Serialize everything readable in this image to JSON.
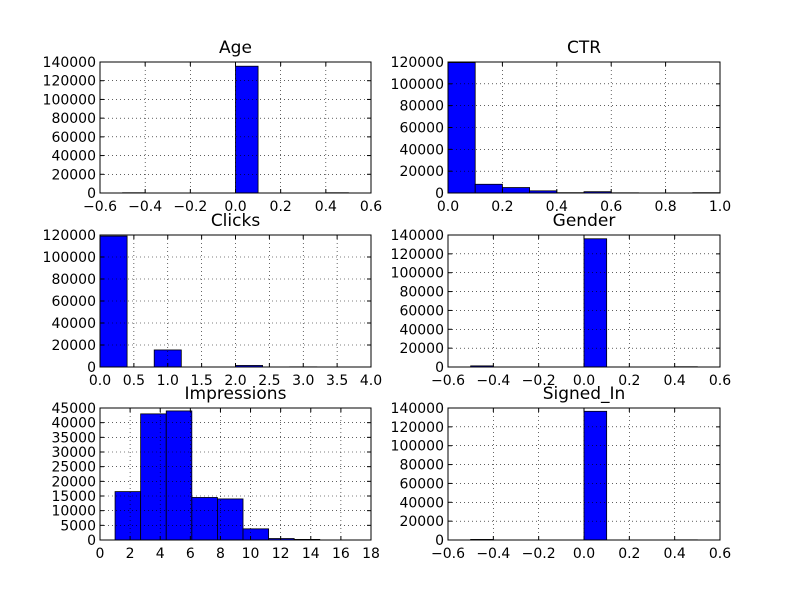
{
  "figure": {
    "background": "#ffffff",
    "bar_color": "#0000ff",
    "bar_edge_color": "#000000"
  },
  "chart_data": [
    {
      "type": "bar",
      "title": "Age",
      "grid": true,
      "xlim": [
        -0.6,
        0.6
      ],
      "ylim": [
        0,
        140000
      ],
      "xticks": [
        -0.6,
        -0.4,
        -0.2,
        0.0,
        0.2,
        0.4,
        0.6
      ],
      "xtick_labels": [
        "−0.6",
        "−0.4",
        "−0.2",
        "0.0",
        "0.2",
        "0.4",
        "0.6"
      ],
      "yticks": [
        0,
        20000,
        40000,
        60000,
        80000,
        100000,
        120000,
        140000
      ],
      "ytick_labels": [
        "0",
        "20000",
        "40000",
        "60000",
        "80000",
        "100000",
        "120000",
        "140000"
      ],
      "bins": [
        [
          -0.5,
          -0.4,
          300
        ],
        [
          -0.4,
          -0.3,
          0
        ],
        [
          -0.3,
          -0.2,
          0
        ],
        [
          -0.2,
          -0.1,
          0
        ],
        [
          -0.1,
          0.0,
          0
        ],
        [
          0.0,
          0.1,
          135500
        ],
        [
          0.1,
          0.2,
          0
        ],
        [
          0.2,
          0.3,
          0
        ],
        [
          0.3,
          0.4,
          0
        ],
        [
          0.4,
          0.5,
          300
        ]
      ]
    },
    {
      "type": "bar",
      "title": "CTR",
      "grid": true,
      "xlim": [
        0.0,
        1.0
      ],
      "ylim": [
        0,
        120000
      ],
      "xticks": [
        0.0,
        0.2,
        0.4,
        0.6,
        0.8,
        1.0
      ],
      "xtick_labels": [
        "0.0",
        "0.2",
        "0.4",
        "0.6",
        "0.8",
        "1.0"
      ],
      "yticks": [
        0,
        20000,
        40000,
        60000,
        80000,
        100000,
        120000
      ],
      "ytick_labels": [
        "0",
        "20000",
        "40000",
        "60000",
        "80000",
        "100000",
        "120000"
      ],
      "bins": [
        [
          0.0,
          0.1,
          119500
        ],
        [
          0.1,
          0.2,
          8000
        ],
        [
          0.2,
          0.3,
          5000
        ],
        [
          0.3,
          0.4,
          2000
        ],
        [
          0.4,
          0.5,
          300
        ],
        [
          0.5,
          0.6,
          1200
        ],
        [
          0.6,
          0.7,
          200
        ],
        [
          0.7,
          0.8,
          100
        ],
        [
          0.8,
          0.9,
          100
        ],
        [
          0.9,
          1.0,
          300
        ]
      ]
    },
    {
      "type": "bar",
      "title": "Clicks",
      "grid": true,
      "xlim": [
        0.0,
        4.0
      ],
      "ylim": [
        0,
        120000
      ],
      "xticks": [
        0.0,
        0.5,
        1.0,
        1.5,
        2.0,
        2.5,
        3.0,
        3.5,
        4.0
      ],
      "xtick_labels": [
        "0.0",
        "0.5",
        "1.0",
        "1.5",
        "2.0",
        "2.5",
        "3.0",
        "3.5",
        "4.0"
      ],
      "yticks": [
        0,
        20000,
        40000,
        60000,
        80000,
        100000,
        120000
      ],
      "ytick_labels": [
        "0",
        "20000",
        "40000",
        "60000",
        "80000",
        "100000",
        "120000"
      ],
      "bins": [
        [
          0.0,
          0.4,
          119000
        ],
        [
          0.4,
          0.8,
          0
        ],
        [
          0.8,
          1.2,
          15500
        ],
        [
          1.2,
          1.6,
          0
        ],
        [
          1.6,
          2.0,
          0
        ],
        [
          2.0,
          2.4,
          1400
        ],
        [
          2.4,
          2.8,
          0
        ],
        [
          2.8,
          3.2,
          150
        ],
        [
          3.2,
          3.6,
          0
        ],
        [
          3.6,
          4.0,
          50
        ]
      ]
    },
    {
      "type": "bar",
      "title": "Gender",
      "grid": true,
      "xlim": [
        -0.6,
        0.6
      ],
      "ylim": [
        0,
        140000
      ],
      "xticks": [
        -0.6,
        -0.4,
        -0.2,
        0.0,
        0.2,
        0.4,
        0.6
      ],
      "xtick_labels": [
        "−0.6",
        "−0.4",
        "−0.2",
        "0.0",
        "0.2",
        "0.4",
        "0.6"
      ],
      "yticks": [
        0,
        20000,
        40000,
        60000,
        80000,
        100000,
        120000,
        140000
      ],
      "ytick_labels": [
        "0",
        "20000",
        "40000",
        "60000",
        "80000",
        "100000",
        "120000",
        "140000"
      ],
      "bins": [
        [
          -0.5,
          -0.4,
          1200
        ],
        [
          -0.4,
          -0.3,
          0
        ],
        [
          -0.3,
          -0.2,
          0
        ],
        [
          -0.2,
          -0.1,
          0
        ],
        [
          -0.1,
          0.0,
          0
        ],
        [
          0.0,
          0.1,
          136000
        ],
        [
          0.1,
          0.2,
          0
        ],
        [
          0.2,
          0.3,
          0
        ],
        [
          0.3,
          0.4,
          0
        ],
        [
          0.4,
          0.5,
          300
        ]
      ]
    },
    {
      "type": "bar",
      "title": "Impressions",
      "grid": true,
      "xlim": [
        0,
        18
      ],
      "ylim": [
        0,
        45000
      ],
      "xticks": [
        0,
        2,
        4,
        6,
        8,
        10,
        12,
        14,
        16,
        18
      ],
      "xtick_labels": [
        "0",
        "2",
        "4",
        "6",
        "8",
        "10",
        "12",
        "14",
        "16",
        "18"
      ],
      "yticks": [
        0,
        5000,
        10000,
        15000,
        20000,
        25000,
        30000,
        35000,
        40000,
        45000
      ],
      "ytick_labels": [
        "0",
        "5000",
        "10000",
        "15000",
        "20000",
        "25000",
        "30000",
        "35000",
        "40000",
        "45000"
      ],
      "bins": [
        [
          1.0,
          2.7,
          16500
        ],
        [
          2.7,
          4.4,
          43000
        ],
        [
          4.4,
          6.1,
          44000
        ],
        [
          6.1,
          7.8,
          14500
        ],
        [
          7.8,
          9.5,
          14000
        ],
        [
          9.5,
          11.2,
          3800
        ],
        [
          11.2,
          12.9,
          500
        ],
        [
          12.9,
          14.6,
          200
        ],
        [
          14.6,
          16.3,
          0
        ],
        [
          16.3,
          18.0,
          0
        ]
      ]
    },
    {
      "type": "bar",
      "title": "Signed_In",
      "grid": true,
      "xlim": [
        -0.6,
        0.6
      ],
      "ylim": [
        0,
        140000
      ],
      "xticks": [
        -0.6,
        -0.4,
        -0.2,
        0.0,
        0.2,
        0.4,
        0.6
      ],
      "xtick_labels": [
        "−0.6",
        "−0.4",
        "−0.2",
        "0.0",
        "0.2",
        "0.4",
        "0.6"
      ],
      "yticks": [
        0,
        20000,
        40000,
        60000,
        80000,
        100000,
        120000,
        140000
      ],
      "ytick_labels": [
        "0",
        "20000",
        "40000",
        "60000",
        "80000",
        "100000",
        "120000",
        "140000"
      ],
      "bins": [
        [
          -0.5,
          -0.4,
          600
        ],
        [
          -0.4,
          -0.3,
          0
        ],
        [
          -0.3,
          -0.2,
          0
        ],
        [
          -0.2,
          -0.1,
          0
        ],
        [
          -0.1,
          0.0,
          0
        ],
        [
          0.0,
          0.1,
          136500
        ],
        [
          0.1,
          0.2,
          0
        ],
        [
          0.2,
          0.3,
          0
        ],
        [
          0.3,
          0.4,
          0
        ],
        [
          0.4,
          0.5,
          200
        ]
      ]
    }
  ]
}
